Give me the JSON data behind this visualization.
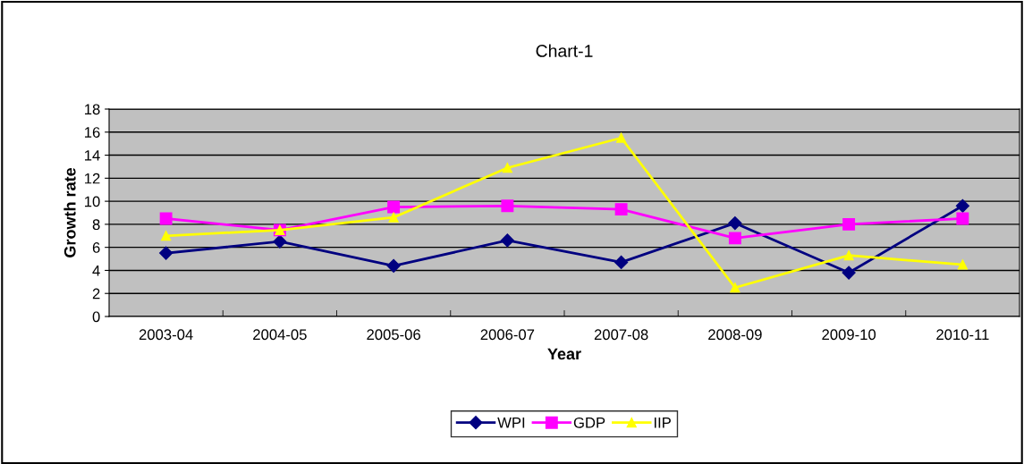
{
  "chart_data": {
    "type": "line",
    "title": "Chart-1",
    "xlabel": "Year",
    "ylabel": "Growth rate",
    "categories": [
      "2003-04",
      "2004-05",
      "2005-06",
      "2006-07",
      "2007-08",
      "2008-09",
      "2009-10",
      "2010-11"
    ],
    "series": [
      {
        "name": "WPI",
        "color": "#000080",
        "marker": "diamond",
        "values": [
          5.5,
          6.5,
          4.4,
          6.6,
          4.7,
          8.1,
          3.8,
          9.6
        ]
      },
      {
        "name": "GDP",
        "color": "#ff00ff",
        "marker": "square",
        "values": [
          8.5,
          7.5,
          9.5,
          9.6,
          9.3,
          6.8,
          8.0,
          8.5
        ]
      },
      {
        "name": "IIP",
        "color": "#ffff00",
        "marker": "triangle",
        "values": [
          7.0,
          7.5,
          8.6,
          12.9,
          15.5,
          2.5,
          5.3,
          4.5
        ]
      }
    ],
    "ylim": [
      0,
      18
    ],
    "yticks": [
      0,
      2,
      4,
      6,
      8,
      10,
      12,
      14,
      16,
      18
    ],
    "grid": "y",
    "legend": "bottom",
    "line_style": "solid"
  }
}
